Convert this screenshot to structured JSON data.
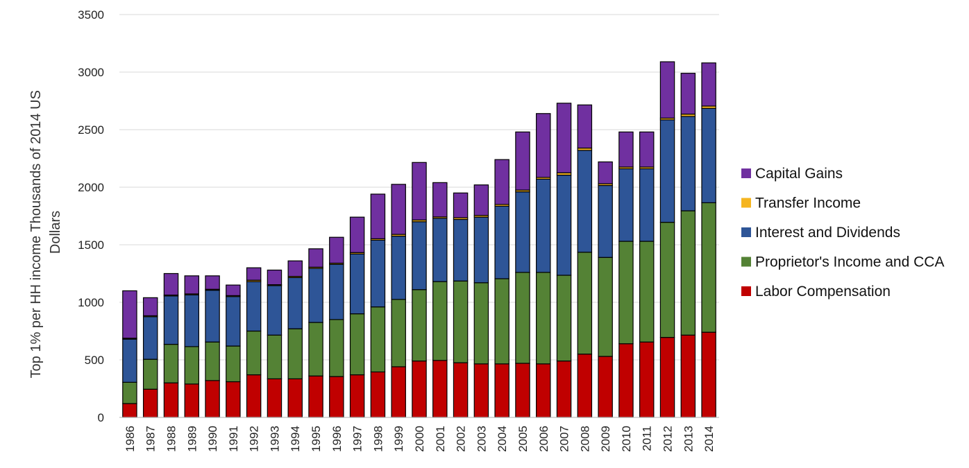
{
  "chart_data": {
    "type": "bar",
    "stacked": true,
    "title": "",
    "xlabel": "",
    "ylabel_lines": [
      "Top 1%  per HH income Thousands of 2014 US",
      "Dollars"
    ],
    "ylim": [
      0,
      3500
    ],
    "yticks": [
      0,
      500,
      1000,
      1500,
      2000,
      2500,
      3000,
      3500
    ],
    "grid": true,
    "legend_position": "right",
    "categories": [
      "1986",
      "1987",
      "1988",
      "1989",
      "1990",
      "1991",
      "1992",
      "1993",
      "1994",
      "1995",
      "1996",
      "1997",
      "1998",
      "1999",
      "2000",
      "2001",
      "2002",
      "2003",
      "2004",
      "2005",
      "2006",
      "2007",
      "2008",
      "2009",
      "2010",
      "2011",
      "2012",
      "2013",
      "2014"
    ],
    "series": [
      {
        "name": "Labor Compensation",
        "color": "#c00000",
        "values": [
          120,
          245,
          300,
          290,
          320,
          310,
          370,
          335,
          335,
          360,
          355,
          370,
          395,
          440,
          490,
          495,
          475,
          465,
          465,
          470,
          465,
          490,
          550,
          530,
          640,
          655,
          695,
          715,
          740
        ]
      },
      {
        "name": "Proprietor's Income and CCA",
        "color": "#548235",
        "values": [
          185,
          260,
          335,
          325,
          335,
          310,
          380,
          380,
          435,
          465,
          495,
          530,
          565,
          585,
          620,
          685,
          710,
          705,
          740,
          790,
          795,
          745,
          885,
          860,
          890,
          875,
          1000,
          1080,
          1125
        ]
      },
      {
        "name": "Interest and Dividends",
        "color": "#2e5597",
        "values": [
          375,
          370,
          420,
          450,
          450,
          430,
          430,
          430,
          445,
          470,
          480,
          520,
          580,
          550,
          590,
          550,
          535,
          570,
          630,
          700,
          810,
          870,
          885,
          625,
          630,
          630,
          890,
          820,
          820
        ]
      },
      {
        "name": "Transfer Income",
        "color": "#f5b520",
        "values": [
          8,
          8,
          8,
          8,
          8,
          8,
          12,
          8,
          10,
          10,
          10,
          12,
          12,
          15,
          15,
          12,
          15,
          15,
          15,
          15,
          15,
          20,
          20,
          15,
          15,
          15,
          15,
          20,
          20
        ]
      },
      {
        "name": "Capital Gains",
        "color": "#7030a0",
        "values": [
          412,
          157,
          187,
          157,
          117,
          92,
          108,
          127,
          135,
          160,
          225,
          308,
          388,
          435,
          500,
          298,
          215,
          265,
          390,
          505,
          555,
          605,
          375,
          190,
          305,
          305,
          490,
          355,
          375
        ]
      }
    ],
    "legend_order": [
      "Capital Gains",
      "Transfer Income",
      "Interest and Dividends",
      "Proprietor's Income and CCA",
      "Labor Compensation"
    ]
  }
}
